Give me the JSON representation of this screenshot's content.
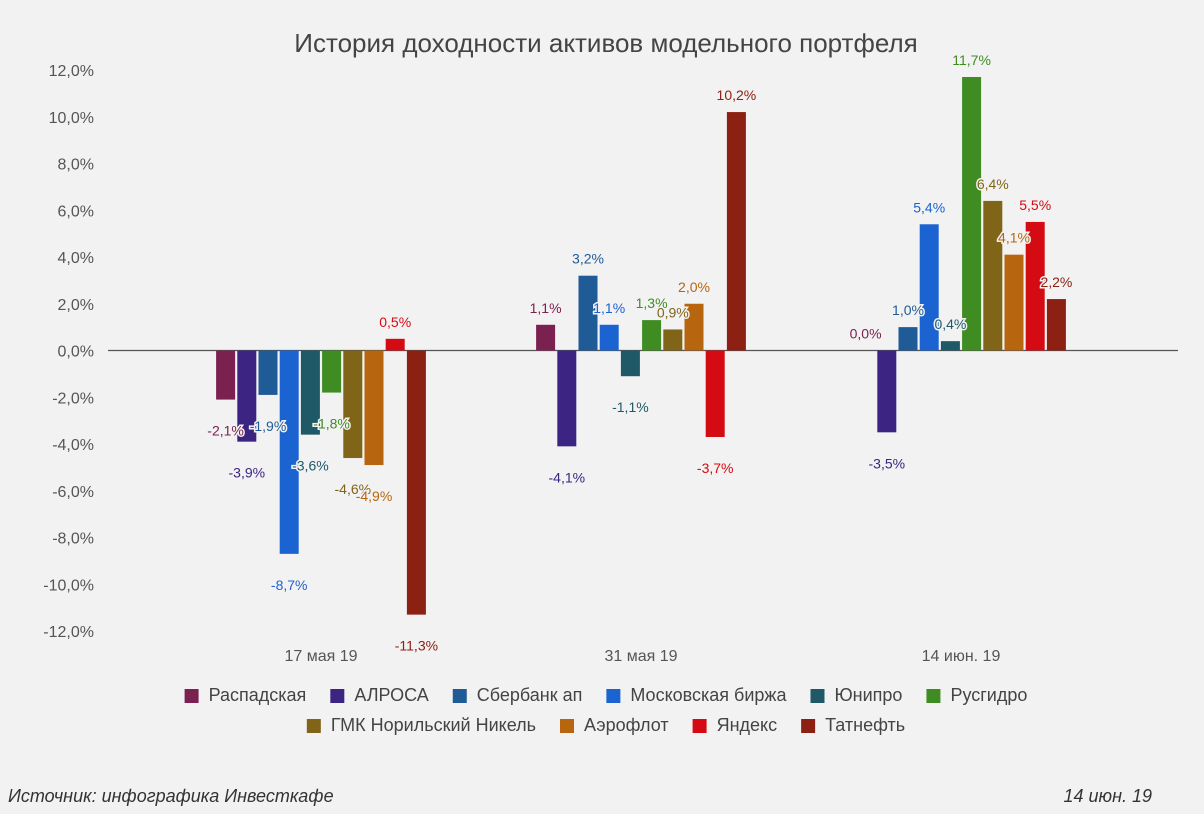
{
  "chart_data": {
    "type": "bar",
    "title": "История доходности активов модельного портфеля",
    "categories": [
      "17 мая 19",
      "31 мая 19",
      "14 июн. 19"
    ],
    "ylim": [
      -12,
      12
    ],
    "yticks": [
      "12,0%",
      "10,0%",
      "8,0%",
      "6,0%",
      "4,0%",
      "2,0%",
      "0,0%",
      "-2,0%",
      "-4,0%",
      "-6,0%",
      "-8,0%",
      "-10,0%",
      "-12,0%"
    ],
    "grid": false,
    "legend_position": "bottom",
    "series": [
      {
        "name": "Распадская",
        "color": "#7b2150",
        "values": [
          -2.1,
          1.1,
          0.0
        ],
        "labels": [
          "-2,1%",
          "1,1%",
          "0,0%"
        ]
      },
      {
        "name": "АЛРОСА",
        "color": "#3c2482",
        "values": [
          -3.9,
          -4.1,
          -3.5
        ],
        "labels": [
          "-3,9%",
          "-4,1%",
          "-3,5%"
        ]
      },
      {
        "name": "Сбербанк ап",
        "color": "#1f5b96",
        "values": [
          -1.9,
          3.2,
          1.0
        ],
        "labels": [
          "-1,9%",
          "3,2%",
          "1,0%"
        ]
      },
      {
        "name": "Московская биржа",
        "color": "#1c63d2",
        "values": [
          -8.7,
          1.1,
          5.4
        ],
        "labels": [
          "-8,7%",
          "1,1%",
          "5,4%"
        ]
      },
      {
        "name": "Юнипро",
        "color": "#1f5866",
        "values": [
          -3.6,
          -1.1,
          0.4
        ],
        "labels": [
          "-3,6%",
          "-1,1%",
          "0,4%"
        ]
      },
      {
        "name": "Русгидро",
        "color": "#3f8c23",
        "values": [
          -1.8,
          1.3,
          11.7
        ],
        "labels": [
          "-1,8%",
          "1,3%",
          "11,7%"
        ]
      },
      {
        "name": "ГМК Норильский Никель",
        "color": "#806418",
        "values": [
          -4.6,
          0.9,
          6.4
        ],
        "labels": [
          "-4,6%",
          "0,9%",
          "6,4%"
        ]
      },
      {
        "name": "Аэрофлот",
        "color": "#b86510",
        "values": [
          -4.9,
          2.0,
          4.1
        ],
        "labels": [
          "-4,9%",
          "2,0%",
          "4,1%"
        ]
      },
      {
        "name": "Яндекс",
        "color": "#d50b13",
        "values": [
          0.5,
          -3.7,
          5.5
        ],
        "labels": [
          "0,5%",
          "-3,7%",
          "5,5%"
        ]
      },
      {
        "name": "Татнефть",
        "color": "#8c2012",
        "values": [
          -11.3,
          10.2,
          2.2
        ],
        "labels": [
          "-11,3%",
          "10,2%",
          "2,2%"
        ]
      }
    ]
  },
  "footer": {
    "source": "Источник: инфографика Инвесткафе",
    "date": "14 июн. 19"
  }
}
